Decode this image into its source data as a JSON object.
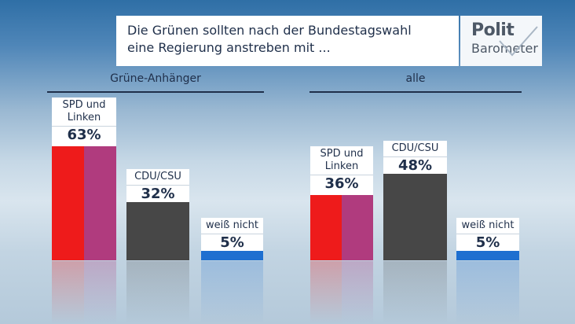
{
  "title": {
    "line1": "Die Grünen sollten nach der Bundestagswahl",
    "line2": "eine Regierung anstreben mit ..."
  },
  "logo": {
    "top": "Polit",
    "bottom": "Barometer"
  },
  "colors": {
    "spd": "#ee1b1b",
    "linke": "#b03b7e",
    "cdu": "#474747",
    "weiss_nicht": "#1e6fd0",
    "text": "#1f2f4a"
  },
  "chart_data": [
    {
      "type": "bar",
      "title": "Grüne-Anhänger",
      "categories": [
        "SPD und Linken",
        "CDU/CSU",
        "weiß nicht"
      ],
      "values": [
        63,
        32,
        5
      ],
      "value_labels": [
        "63%",
        "32%",
        "5%"
      ],
      "ylim": [
        0,
        70
      ]
    },
    {
      "type": "bar",
      "title": "alle",
      "categories": [
        "SPD und Linken",
        "CDU/CSU",
        "weiß nicht"
      ],
      "values": [
        36,
        48,
        5
      ],
      "value_labels": [
        "36%",
        "48%",
        "5%"
      ],
      "ylim": [
        0,
        70
      ]
    }
  ]
}
